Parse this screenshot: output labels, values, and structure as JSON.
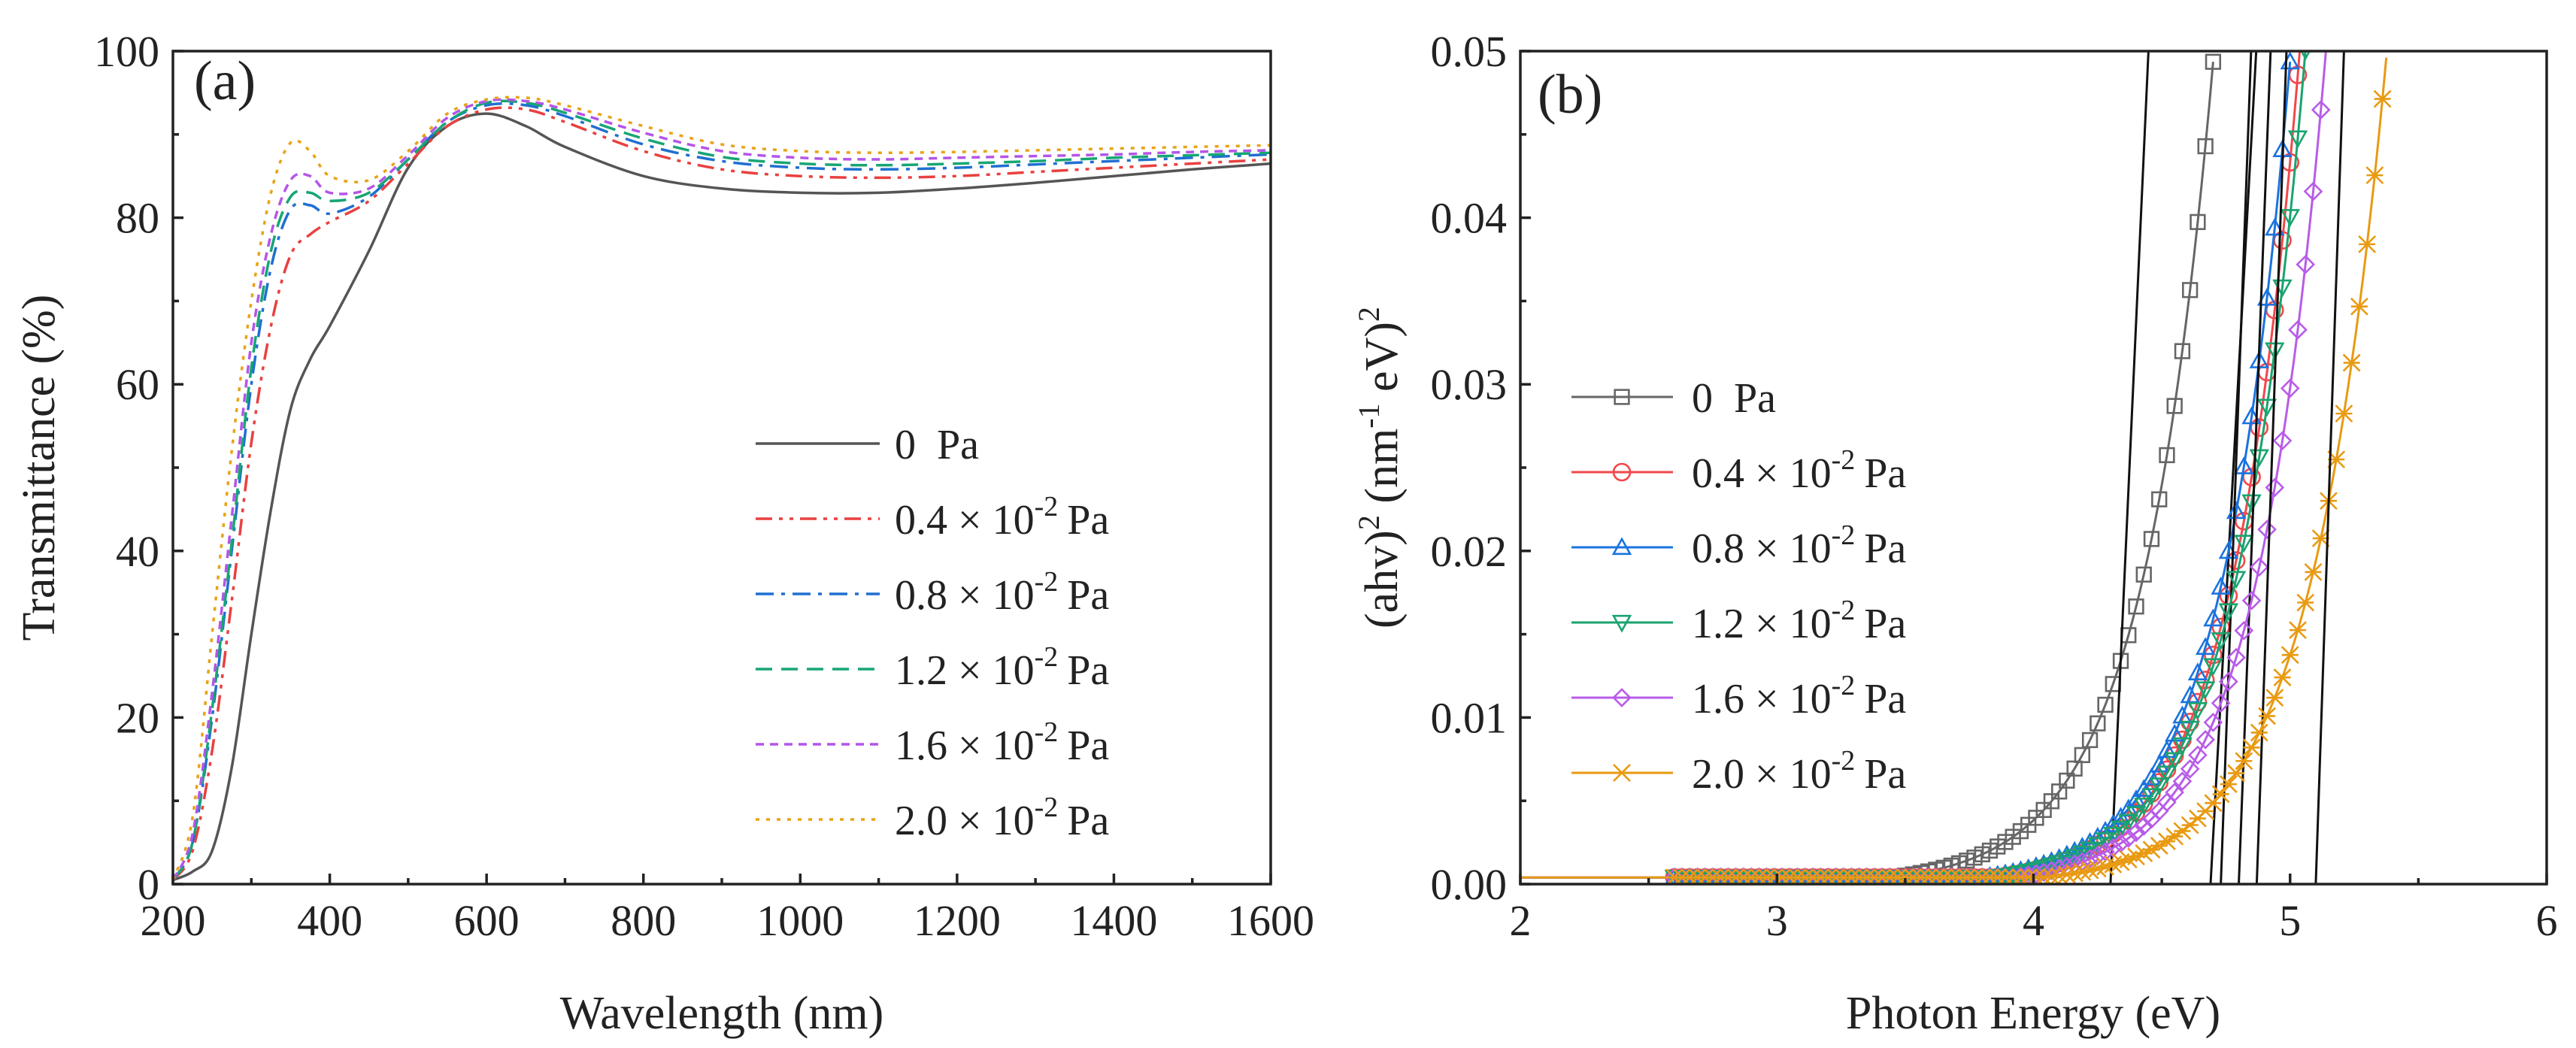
{
  "chart_data": [
    {
      "panel": "(a)",
      "type": "line",
      "xlabel": "Wavelength (nm)",
      "ylabel": "Transmittance (%)",
      "xlim": [
        200,
        1600
      ],
      "ylim": [
        0,
        100
      ],
      "xticks": [
        200,
        400,
        600,
        800,
        1000,
        1200,
        1400,
        1600
      ],
      "yticks": [
        0,
        20,
        40,
        60,
        80,
        100
      ],
      "legend": {
        "placement": "lower-right"
      },
      "series": [
        {
          "name": "0 Pa",
          "label_base": "0",
          "label_exp": "",
          "label_unit": "Pa",
          "color": "#555555",
          "dash": "solid",
          "x": [
            200,
            225,
            250,
            275,
            300,
            325,
            350,
            375,
            400,
            450,
            500,
            550,
            600,
            650,
            700,
            800,
            900,
            1000,
            1100,
            1200,
            1300,
            1400,
            1500,
            1600
          ],
          "y": [
            0.5,
            1.5,
            4,
            14,
            30,
            45,
            57,
            63,
            67,
            76,
            86,
            91,
            92.5,
            91,
            88.5,
            85,
            83.5,
            83,
            83,
            83.5,
            84.2,
            85,
            85.8,
            86.5
          ]
        },
        {
          "name": "0.4 × 10-2 Pa",
          "label_base": "0.4 × 10",
          "label_exp": "-2",
          "label_unit": "Pa",
          "color": "#e8413f",
          "dash": "dashdotdot",
          "x": [
            200,
            225,
            250,
            275,
            300,
            325,
            350,
            375,
            400,
            450,
            500,
            550,
            600,
            650,
            700,
            800,
            900,
            1000,
            1100,
            1200,
            1300,
            1400,
            1500,
            1600
          ],
          "y": [
            0.5,
            4,
            16,
            34,
            53,
            67,
            75.5,
            78,
            79.5,
            82,
            86.5,
            91,
            93,
            93,
            91.5,
            88,
            85.8,
            85,
            84.8,
            85,
            85.5,
            86,
            86.5,
            87
          ]
        },
        {
          "name": "0.8 × 10-2 Pa",
          "label_base": "0.8 × 10",
          "label_exp": "-2",
          "label_unit": "Pa",
          "color": "#1f6fd1",
          "dash": "dashdot",
          "x": [
            200,
            225,
            250,
            275,
            300,
            325,
            350,
            375,
            400,
            450,
            500,
            550,
            600,
            650,
            700,
            800,
            900,
            1000,
            1100,
            1200,
            1300,
            1400,
            1500,
            1600
          ],
          "y": [
            0.5,
            5,
            20,
            40,
            60,
            74,
            81,
            81.5,
            80.5,
            82.5,
            87,
            91.5,
            93.5,
            93.5,
            92.2,
            88.8,
            86.8,
            86,
            85.8,
            86,
            86.4,
            86.8,
            87.2,
            87.6
          ]
        },
        {
          "name": "1.2 × 10-2 Pa",
          "label_base": "1.2 × 10",
          "label_exp": "-2",
          "label_unit": "Pa",
          "color": "#17a673",
          "dash": "dash",
          "x": [
            200,
            225,
            250,
            275,
            300,
            325,
            350,
            375,
            400,
            450,
            500,
            550,
            600,
            650,
            700,
            800,
            900,
            1000,
            1100,
            1200,
            1300,
            1400,
            1500,
            1600
          ],
          "y": [
            0.5,
            5,
            21,
            41,
            62,
            76,
            82.5,
            83,
            82,
            83,
            87,
            91.5,
            93.8,
            93.8,
            92.6,
            89.5,
            87.3,
            86.5,
            86.3,
            86.5,
            86.8,
            87.2,
            87.5,
            87.8
          ]
        },
        {
          "name": "1.6 × 10-2 Pa",
          "label_base": "1.6 × 10",
          "label_exp": "-2",
          "label_unit": "Pa",
          "color": "#b455e8",
          "dash": "shortdash",
          "x": [
            200,
            225,
            250,
            275,
            300,
            325,
            350,
            375,
            400,
            450,
            500,
            550,
            600,
            650,
            700,
            800,
            900,
            1000,
            1100,
            1200,
            1300,
            1400,
            1500,
            1600
          ],
          "y": [
            0.5,
            6,
            23,
            44,
            65,
            78,
            84.5,
            85,
            83,
            83.5,
            87.5,
            92,
            94,
            94,
            93,
            90.2,
            88,
            87.2,
            87,
            87.2,
            87.4,
            87.6,
            87.9,
            88.1
          ]
        },
        {
          "name": "2.0 × 10-2 Pa",
          "label_base": "2.0 × 10",
          "label_exp": "-2",
          "label_unit": "Pa",
          "color": "#e8a317",
          "dash": "dot",
          "x": [
            200,
            225,
            250,
            275,
            300,
            325,
            350,
            375,
            400,
            450,
            500,
            550,
            600,
            650,
            700,
            800,
            900,
            1000,
            1100,
            1200,
            1300,
            1400,
            1500,
            1600
          ],
          "y": [
            0.5,
            8,
            30,
            52,
            70,
            83,
            89,
            88,
            85,
            84.5,
            88,
            92.5,
            94.2,
            94.4,
            93.5,
            91,
            88.8,
            88,
            87.8,
            87.9,
            88.1,
            88.3,
            88.5,
            88.7
          ]
        }
      ]
    },
    {
      "panel": "(b)",
      "type": "scatter",
      "xlabel": "Photon Energy (eV)",
      "ylabel_base": "(ahv)",
      "ylabel_exp1": "2",
      "ylabel_mid": " (nm",
      "ylabel_exp2": "-1",
      "ylabel_end": " eV)",
      "ylabel_exp3": "2",
      "xlim": [
        2,
        6
      ],
      "ylim": [
        0,
        0.05
      ],
      "xticks": [
        2,
        3,
        4,
        5,
        6
      ],
      "yticks": [
        "0.00",
        "0.01",
        "0.02",
        "0.03",
        "0.04",
        "0.05"
      ],
      "legend": {
        "placement": "center-left"
      },
      "series": [
        {
          "name": "0 Pa",
          "label_base": "0",
          "label_exp": "",
          "label_unit": "Pa",
          "color": "#666666",
          "marker": "square",
          "onset": 3.45,
          "k": 3.6,
          "fit_intercept": 4.3,
          "fit_slope": 0.148
        },
        {
          "name": "0.4 × 10-2 Pa",
          "label_base": "0.4 × 10",
          "label_exp": "-2",
          "label_unit": "Pa",
          "color": "#f2474a",
          "marker": "circle",
          "onset": 3.85,
          "k": 3.8,
          "fit_intercept": 4.69,
          "fit_slope": 0.178
        },
        {
          "name": "0.8 × 10-2 Pa",
          "label_base": "0.8 × 10",
          "label_exp": "-2",
          "label_unit": "Pa",
          "color": "#1a73e0",
          "marker": "triangle-up",
          "onset": 3.8,
          "k": 3.75,
          "fit_intercept": 4.73,
          "fit_slope": 0.118
        },
        {
          "name": "1.2 × 10-2 Pa",
          "label_base": "1.2 × 10",
          "label_exp": "-2",
          "label_unit": "Pa",
          "color": "#1aa36f",
          "marker": "triangle-down",
          "onset": 3.84,
          "k": 3.7,
          "fit_intercept": 4.8,
          "fit_slope": 0.124
        },
        {
          "name": "1.6 × 10-2 Pa",
          "label_base": "1.6 × 10",
          "label_exp": "-2",
          "label_unit": "Pa",
          "color": "#b85ce8",
          "marker": "diamond",
          "onset": 3.92,
          "k": 3.7,
          "fit_intercept": 4.87,
          "fit_slope": 0.116
        },
        {
          "name": "2.0 × 10-2 Pa",
          "label_base": "2.0 × 10",
          "label_exp": "-2",
          "label_unit": "Pa",
          "color": "#e89a12",
          "marker": "star",
          "onset": 4.05,
          "k": 3.4,
          "fit_intercept": 5.1,
          "fit_slope": 0.11
        }
      ]
    }
  ]
}
